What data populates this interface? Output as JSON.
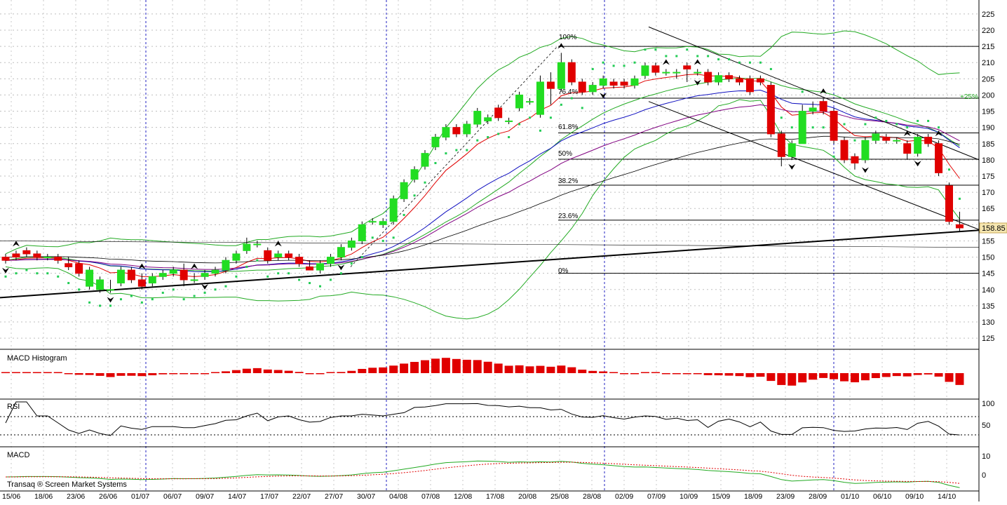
{
  "price_panel": {
    "y_ticks": [
      225,
      220,
      215,
      210,
      205,
      200,
      195,
      190,
      185,
      180,
      175,
      170,
      165,
      160,
      155,
      150,
      145,
      140,
      135,
      130,
      125
    ],
    "last_price": "158.85",
    "fib_labels": {
      "p100": "100%",
      "p764": "76.4%",
      "p618": "61.8%",
      "p50": "50%",
      "p382": "38.2%",
      "p236": "23.6%",
      "p0": "0%"
    },
    "percent_tag": "+25%"
  },
  "x_labels": [
    "15/06",
    "18/06",
    "23/06",
    "26/06",
    "01/07",
    "06/07",
    "09/07",
    "14/07",
    "17/07",
    "22/07",
    "27/07",
    "30/07",
    "04/08",
    "07/08",
    "12/08",
    "17/08",
    "20/08",
    "25/08",
    "28/08",
    "02/09",
    "07/09",
    "10/09",
    "15/09",
    "18/09",
    "23/09",
    "28/09",
    "01/10",
    "06/10",
    "09/10",
    "14/10"
  ],
  "panels": {
    "macd_hist_title": "MACD Histogram",
    "rsi_title": "RSI",
    "rsi_ticks": [
      "100",
      "50"
    ],
    "macd_title": "MACD",
    "macd_ticks": [
      "10",
      "0"
    ]
  },
  "footer": {
    "brand": "Transaq ® Screen Market Systems"
  },
  "colors": {
    "up": "#22dd22",
    "down": "#e00000",
    "band": "#22aa22",
    "ma_blue": "#1010c0",
    "ma_purple": "#800080",
    "ma_red": "#e00000",
    "sar": "#22cc55"
  },
  "chart_data": {
    "type": "candlestick",
    "y_range": [
      122,
      228
    ],
    "indicators": [
      "Bollinger Bands",
      "Moving averages",
      "Parabolic SAR",
      "Fibonacci retracement",
      "Trend lines",
      "MACD Histogram",
      "RSI",
      "MACD"
    ],
    "candles": [
      [
        150,
        149,
        151,
        148
      ],
      [
        151,
        150,
        152,
        149
      ],
      [
        152,
        151,
        153,
        150
      ],
      [
        151,
        150,
        152,
        149
      ],
      [
        150,
        150,
        151,
        149
      ],
      [
        150,
        149,
        151,
        148
      ],
      [
        148,
        147,
        150,
        146
      ],
      [
        148,
        145,
        149,
        144
      ],
      [
        141,
        146,
        147,
        140
      ],
      [
        140,
        143,
        144,
        139
      ],
      [
        140,
        140,
        143,
        139
      ],
      [
        142,
        146,
        147,
        141
      ],
      [
        146,
        143,
        147,
        142
      ],
      [
        143,
        141,
        145,
        140
      ],
      [
        142,
        144,
        145,
        141
      ],
      [
        144,
        145,
        146,
        143
      ],
      [
        145,
        146,
        147,
        144
      ],
      [
        146,
        143,
        148,
        141
      ],
      [
        143,
        143,
        145,
        142
      ],
      [
        144,
        145,
        146,
        143
      ],
      [
        145,
        146,
        147,
        144
      ],
      [
        146,
        149,
        150,
        145
      ],
      [
        149,
        151,
        152,
        148
      ],
      [
        152,
        154,
        156,
        151
      ],
      [
        154,
        154,
        155,
        153
      ],
      [
        152,
        149,
        153,
        148
      ],
      [
        150,
        151,
        152,
        149
      ],
      [
        151,
        150,
        152,
        149
      ],
      [
        150,
        148,
        151,
        147
      ],
      [
        147,
        146,
        149,
        146
      ],
      [
        146,
        148,
        149,
        145
      ],
      [
        148,
        150,
        151,
        147
      ],
      [
        150,
        153,
        154,
        149
      ],
      [
        153,
        155,
        156,
        152
      ],
      [
        155,
        160,
        161,
        154
      ],
      [
        161,
        161,
        162,
        160
      ],
      [
        160,
        161,
        162,
        159
      ],
      [
        161,
        168,
        169,
        160
      ],
      [
        168,
        173,
        174,
        167
      ],
      [
        174,
        177,
        178,
        173
      ],
      [
        178,
        182,
        183,
        177
      ],
      [
        184,
        187,
        188,
        183
      ],
      [
        187,
        190,
        191,
        186
      ],
      [
        190,
        188,
        191,
        187
      ],
      [
        188,
        191,
        192,
        187
      ],
      [
        191,
        195,
        196,
        190
      ],
      [
        192,
        193,
        194,
        191
      ],
      [
        196,
        193,
        197,
        192
      ],
      [
        192,
        192,
        193,
        191
      ],
      [
        196,
        200,
        201,
        195
      ],
      [
        198,
        198,
        199,
        197
      ],
      [
        194,
        204,
        206,
        193
      ],
      [
        204,
        202,
        207,
        197
      ],
      [
        202,
        210,
        213,
        201
      ],
      [
        210,
        204,
        211,
        203
      ],
      [
        204,
        201,
        205,
        200
      ],
      [
        201,
        203,
        204,
        200
      ],
      [
        203,
        205,
        206,
        202
      ],
      [
        204,
        203,
        205,
        202
      ],
      [
        204,
        203,
        205,
        202
      ],
      [
        203,
        205,
        206,
        202
      ],
      [
        206,
        209,
        210,
        205
      ],
      [
        209,
        207,
        210,
        206
      ],
      [
        207,
        207,
        208,
        206
      ],
      [
        207,
        207,
        208,
        205
      ],
      [
        209,
        208,
        210,
        204
      ],
      [
        207,
        207,
        208,
        206
      ],
      [
        207,
        204,
        208,
        203
      ],
      [
        204,
        206,
        207,
        203
      ],
      [
        206,
        205,
        207,
        204
      ],
      [
        205,
        204,
        206,
        203
      ],
      [
        205,
        201,
        206,
        200
      ],
      [
        205,
        204,
        206,
        203
      ],
      [
        203,
        188,
        204,
        187
      ],
      [
        188,
        181,
        189,
        178
      ],
      [
        181,
        185,
        186,
        180
      ],
      [
        185,
        195,
        197,
        186
      ],
      [
        195,
        196,
        198,
        194
      ],
      [
        198,
        195,
        199,
        194
      ],
      [
        195,
        186,
        196,
        185
      ],
      [
        186,
        180,
        187,
        179
      ],
      [
        181,
        179,
        182,
        177
      ],
      [
        180,
        186,
        187,
        179
      ],
      [
        186,
        188,
        189,
        185
      ],
      [
        187,
        186,
        188,
        185
      ],
      [
        186,
        186,
        187,
        185
      ],
      [
        185,
        182,
        186,
        180
      ],
      [
        182,
        187,
        188,
        181
      ],
      [
        187,
        185,
        188,
        184
      ],
      [
        185,
        176,
        186,
        175
      ],
      [
        172,
        161,
        173,
        160
      ],
      [
        160,
        159,
        164,
        158
      ]
    ]
  }
}
